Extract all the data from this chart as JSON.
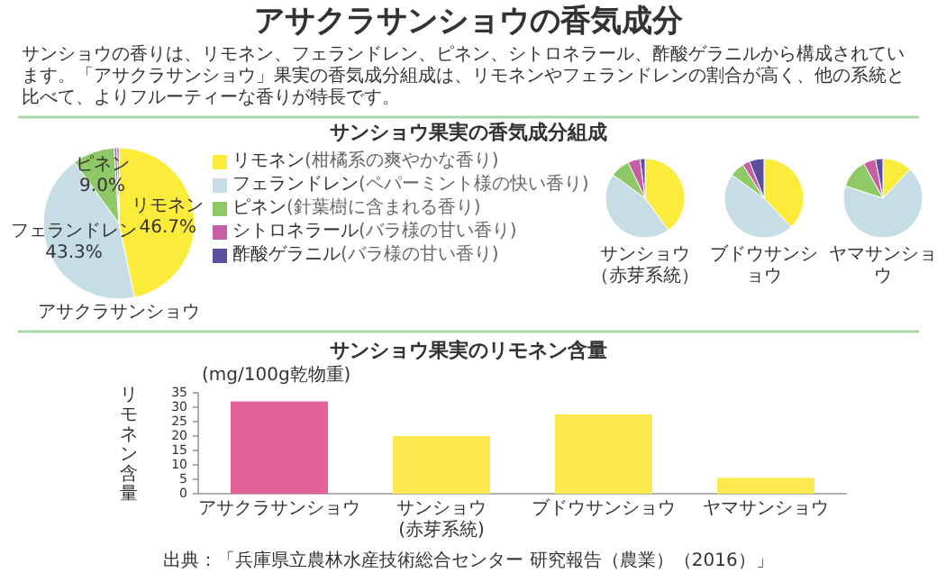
{
  "chart_data": [
    {
      "type": "other",
      "title": "アサクラサンショウの香気成分",
      "annotations": [
        "サンショウの香りは、リモネン、フェランドレン、ピネン、シトロネラール、酢酸ゲラニルから構成されています。「アサクラサンショウ」果実の香気成分組成は、リモネンやフェランドレンの割合が高く、他の系統と比べて、よりフルーティーな香りが特長です。"
      ]
    },
    {
      "type": "pie",
      "title": "サンショウ果実の香気成分組成",
      "xlabel": "アサクラサンショウ",
      "categories": [
        "リモネン",
        "フェランドレン",
        "ピネン",
        "シトロネラール",
        "酢酸ゲラニル"
      ],
      "values": [
        46.7,
        43.3,
        9.0,
        0.6,
        0.4
      ],
      "value_labels": [
        "46.7%",
        "43.3%",
        "9.0%",
        null,
        null
      ],
      "colors": [
        "#fbec3c",
        "#c6dde6",
        "#8fc866",
        "#c75fa4",
        "#5b4f9e"
      ],
      "legend": "right",
      "annotations": [
        "(柑橘系の爽やかな香り)",
        "(ペパーミント様の快い香り)",
        "(針葉樹に含まれる香り)",
        "(バラ様の甘い香り)",
        "(バラ様の甘い香り)"
      ]
    },
    {
      "type": "pie",
      "xlabel": "サンショウ（赤芽系統）",
      "categories": [
        null,
        null,
        null,
        null,
        null
      ],
      "values": [
        40,
        45,
        8,
        5,
        2
      ],
      "colors": [
        "#fbec3c",
        "#c6dde6",
        "#8fc866",
        "#c75fa4",
        "#5b4f9e"
      ]
    },
    {
      "type": "pie",
      "xlabel": "ブドウサンショウ",
      "categories": [
        null,
        null,
        null,
        null,
        null
      ],
      "values": [
        38,
        47,
        6,
        3,
        6
      ],
      "colors": [
        "#fbec3c",
        "#c6dde6",
        "#8fc866",
        "#c75fa4",
        "#5b4f9e"
      ]
    },
    {
      "type": "pie",
      "xlabel": "ヤマサンショウ",
      "categories": [
        null,
        null,
        null,
        null,
        null
      ],
      "values": [
        12,
        68,
        12,
        5,
        3
      ],
      "colors": [
        "#fbec3c",
        "#c6dde6",
        "#8fc866",
        "#c75fa4",
        "#5b4f9e"
      ]
    },
    {
      "type": "bar",
      "title": "サンショウ果実のリモネン含量",
      "ylabel": "リモネン含量",
      "categories": [
        "アサクラサンショウ",
        "サンショウ\n(赤芽系統)",
        "ブドウサンショウ",
        "ヤマサンショウ"
      ],
      "values": [
        32,
        20,
        27.5,
        5.5
      ],
      "colors": [
        "#e2639a",
        "#fbe94f",
        "#fbe94f",
        "#fbe94f"
      ],
      "ylim": [
        0,
        35
      ],
      "yticks": [
        0,
        5,
        10,
        15,
        20,
        25,
        30,
        35
      ],
      "annotations": [
        "(mg/100g乾物重)",
        "出典：「兵庫県立農林水産技術総合センター 研究報告（農業）（2016）」"
      ]
    }
  ]
}
